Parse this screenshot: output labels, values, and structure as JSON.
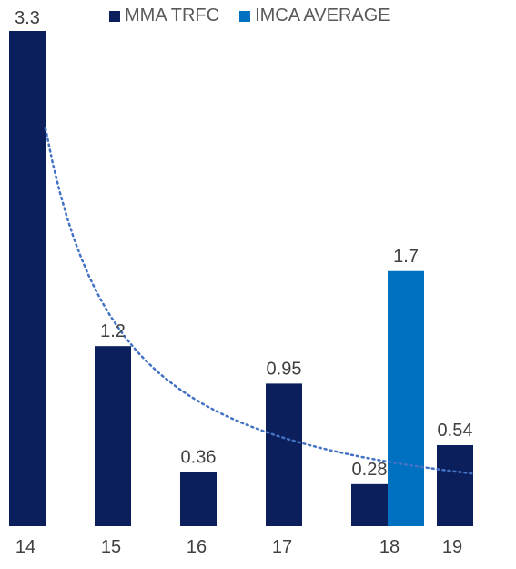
{
  "chart_data": {
    "type": "bar",
    "categories": [
      "14",
      "15",
      "16",
      "17",
      "18",
      "19"
    ],
    "series": [
      {
        "name": "MMA TRFC",
        "color": "#0b1f5c",
        "values": [
          3.3,
          1.2,
          0.36,
          0.95,
          0.28,
          0.54
        ],
        "labels": [
          "3.3",
          "1.2",
          "0.36",
          "0.95",
          "0.28",
          "0.54"
        ]
      },
      {
        "name": "IMCA AVERAGE",
        "color": "#0070c0",
        "values": [
          null,
          null,
          null,
          null,
          1.7,
          null
        ],
        "labels": [
          "",
          "",
          "",
          "",
          "1.7",
          ""
        ]
      }
    ],
    "trendline": {
      "type": "power",
      "style": "dotted",
      "color": "#4472c4"
    },
    "ylim": [
      0,
      3.3
    ],
    "legend_position": "top",
    "grid": false
  }
}
